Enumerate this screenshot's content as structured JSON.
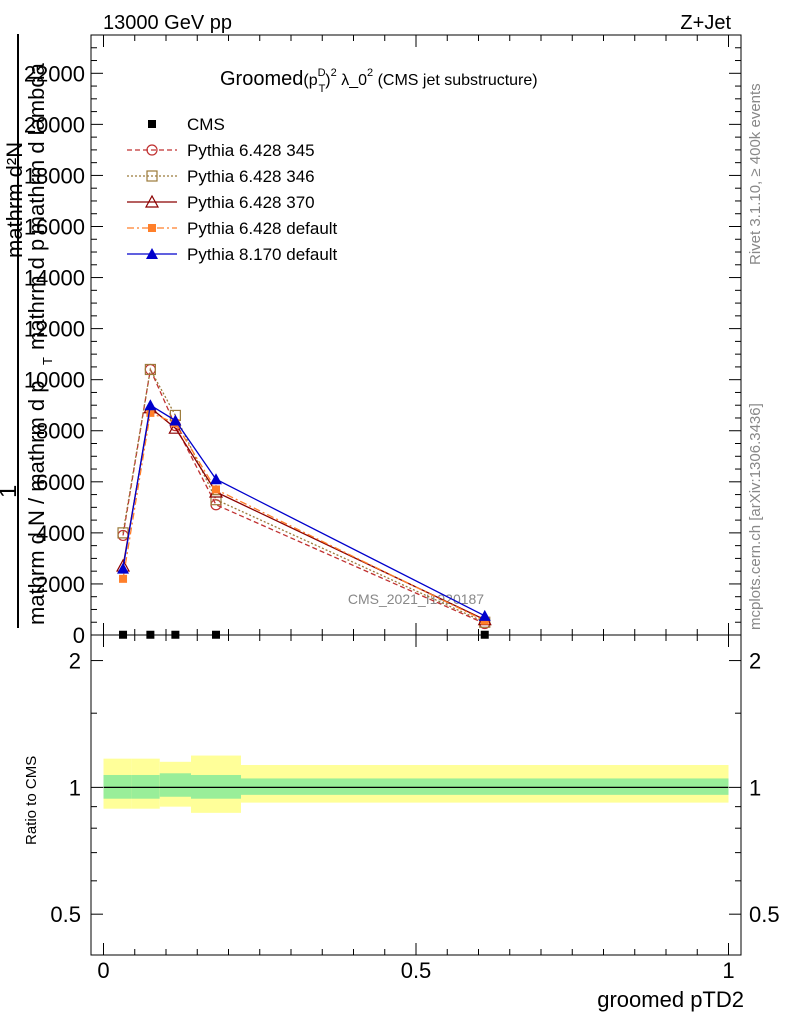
{
  "header": {
    "left": "13000 GeV pp",
    "right": "Z+Jet"
  },
  "side_labels": {
    "rivet": "Rivet 3.1.10, ≥ 400k events",
    "mcplots": "mcplots.cern.ch [arXiv:1306.3436]"
  },
  "watermark": "CMS_2021_I1920187",
  "chart_data": [
    {
      "type": "line",
      "title_main": "Groomed",
      "title_formula": "(p",
      "title_sup_d": "D",
      "title_sub_t": "T",
      "title_close": ")",
      "title_sup_2": "2",
      "title_rest": " λ_0",
      "title_sup_2b": "2",
      "title_suffix": " (CMS jet substructure)",
      "ylabel_top": "mathrm d²N",
      "ylabel_mid": "mathrm d p mathrm d lambda",
      "ylabel_1": "1",
      "ylabel_bottom": "mathrm d N / mathrm d p",
      "ylabel_sub": "T",
      "xlim": [
        -0.02,
        1.02
      ],
      "ylim": [
        0,
        23500
      ],
      "yticks": [
        0,
        2000,
        4000,
        6000,
        8000,
        10000,
        12000,
        14000,
        16000,
        18000,
        20000,
        22000
      ],
      "ytick_labels": [
        "0",
        "2000",
        "4000",
        "6000",
        "8000",
        "10000",
        "12000",
        "14000",
        "16000",
        "18000",
        "20000",
        "22000"
      ],
      "x": [
        0.03125,
        0.075,
        0.115,
        0.18,
        0.61
      ],
      "series": [
        {
          "name": "CMS",
          "values": [
            10,
            10,
            10,
            10,
            10
          ],
          "color": "#000000",
          "marker": "square",
          "dash": ""
        },
        {
          "name": "Pythia 6.428 345",
          "values": [
            3900,
            10400,
            8200,
            5100,
            450
          ],
          "color": "#c03030",
          "marker": "circle-open",
          "dash": "5,3"
        },
        {
          "name": "Pythia 6.428 346",
          "values": [
            4000,
            10400,
            8600,
            5300,
            500
          ],
          "color": "#9b7a3a",
          "marker": "square-open",
          "dash": "2,2"
        },
        {
          "name": "Pythia 6.428 370",
          "values": [
            2700,
            8900,
            8100,
            5600,
            600
          ],
          "color": "#8b0000",
          "marker": "triangle-open",
          "dash": ""
        },
        {
          "name": "Pythia 6.428 default",
          "values": [
            2200,
            8700,
            8300,
            5700,
            560
          ],
          "color": "#ff7f2a",
          "marker": "square-filled",
          "dash": "7,3,2,3"
        },
        {
          "name": "Pythia 8.170 default",
          "values": [
            2600,
            9000,
            8400,
            6100,
            750
          ],
          "color": "#0000cc",
          "marker": "triangle-filled",
          "dash": ""
        }
      ]
    },
    {
      "type": "area",
      "ylabel": "Ratio to CMS",
      "xlabel": "groomed pTD2",
      "xlim": [
        -0.02,
        1.02
      ],
      "ylim": [
        0.4,
        2.3
      ],
      "log_y": true,
      "yticks": [
        0.5,
        1,
        2
      ],
      "ytick_labels": [
        "0.5",
        "1",
        "2"
      ],
      "xticks": [
        0,
        0.5,
        1
      ],
      "xtick_labels": [
        "0",
        "0.5",
        "1"
      ],
      "bins": [
        {
          "lo": 0.0,
          "hi": 0.045,
          "stat_lo": 0.94,
          "stat_hi": 1.07,
          "tot_lo": 0.89,
          "tot_hi": 1.17
        },
        {
          "lo": 0.045,
          "hi": 0.09,
          "stat_lo": 0.94,
          "stat_hi": 1.07,
          "tot_lo": 0.89,
          "tot_hi": 1.17
        },
        {
          "lo": 0.09,
          "hi": 0.14,
          "stat_lo": 0.95,
          "stat_hi": 1.08,
          "tot_lo": 0.9,
          "tot_hi": 1.15
        },
        {
          "lo": 0.14,
          "hi": 0.22,
          "stat_lo": 0.94,
          "stat_hi": 1.07,
          "tot_lo": 0.87,
          "tot_hi": 1.19
        },
        {
          "lo": 0.22,
          "hi": 1.0,
          "stat_lo": 0.96,
          "stat_hi": 1.05,
          "tot_lo": 0.92,
          "tot_hi": 1.13
        }
      ],
      "colors": {
        "stat": "#99ee99",
        "total": "#ffff99"
      }
    }
  ]
}
